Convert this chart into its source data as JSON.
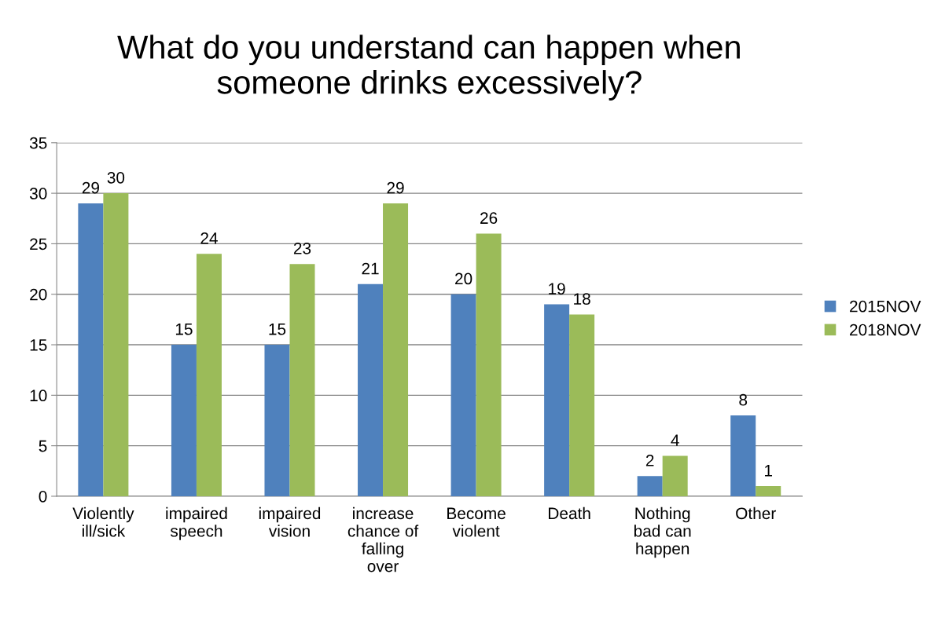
{
  "chart_data": {
    "type": "bar",
    "title": "What do you understand can happen when\nsomeone drinks excessively?",
    "categories": [
      "Violently\nill/sick",
      "impaired\nspeech",
      "impaired\nvision",
      "increase\nchance of\nfalling\nover",
      "Become\nviolent",
      "Death",
      "Nothing\nbad can\nhappen",
      "Other"
    ],
    "series": [
      {
        "name": "2015NOV",
        "color": "#4f81bd",
        "values": [
          29,
          15,
          15,
          21,
          20,
          19,
          2,
          8
        ]
      },
      {
        "name": "2018NOV",
        "color": "#9bbb59",
        "values": [
          30,
          24,
          23,
          29,
          26,
          18,
          4,
          1
        ]
      }
    ],
    "ylim": [
      0,
      35
    ],
    "yticks": [
      0,
      5,
      10,
      15,
      20,
      25,
      30,
      35
    ],
    "grid": "y",
    "legend": "right",
    "data_labels": true
  }
}
